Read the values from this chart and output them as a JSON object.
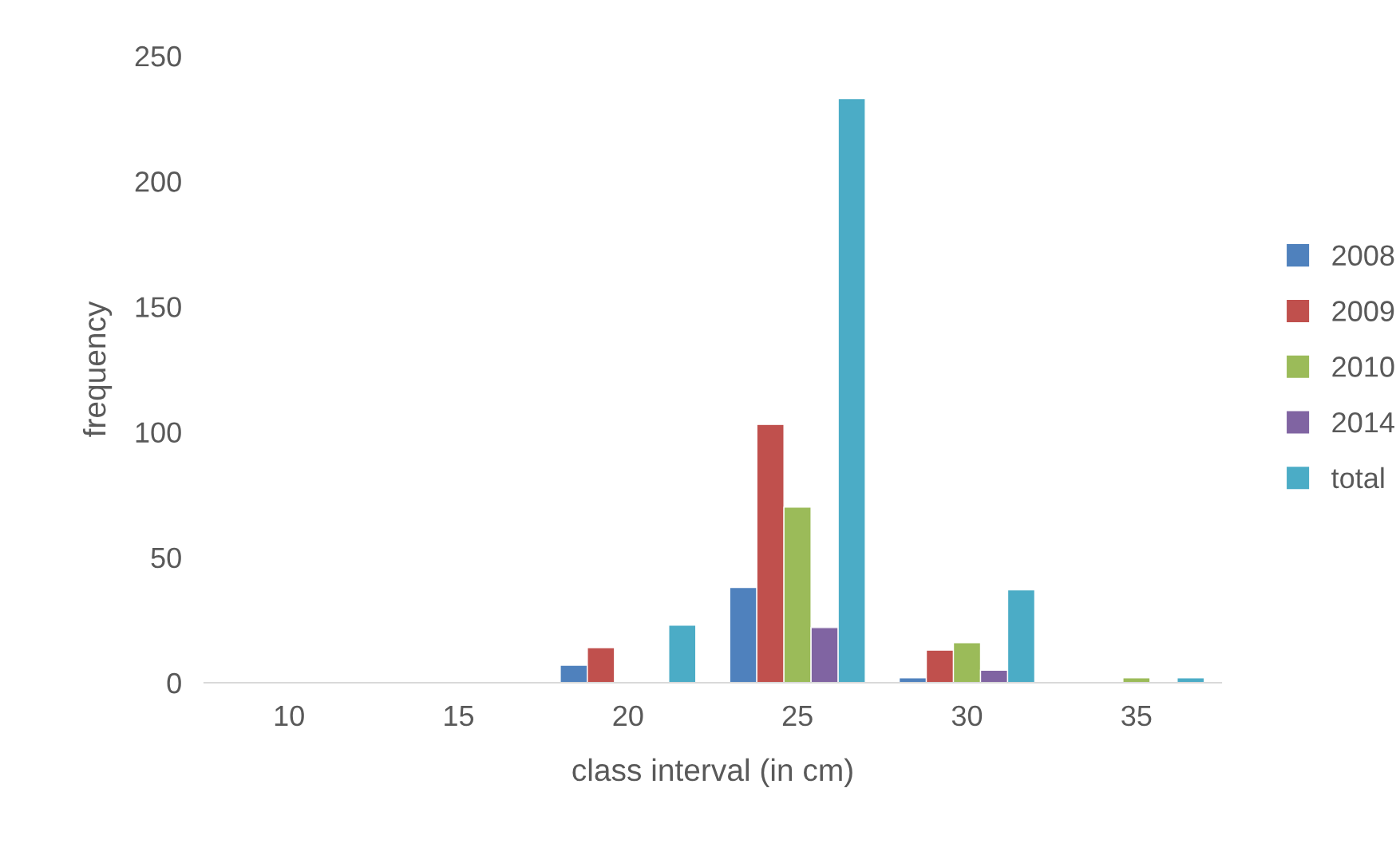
{
  "chart_data": {
    "type": "bar",
    "xlabel": "class interval (in cm)",
    "ylabel": "frequency",
    "categories": [
      "10",
      "15",
      "20",
      "25",
      "30",
      "35"
    ],
    "series": [
      {
        "name": "2008",
        "color": "#4f81bd",
        "values": [
          null,
          null,
          7,
          38,
          2,
          null
        ]
      },
      {
        "name": "2009",
        "color": "#c0504d",
        "values": [
          null,
          null,
          14,
          103,
          13,
          null
        ]
      },
      {
        "name": "2010",
        "color": "#9bbb59",
        "values": [
          null,
          null,
          null,
          70,
          16,
          2
        ]
      },
      {
        "name": "2014",
        "color": "#8064a2",
        "values": [
          null,
          null,
          null,
          22,
          5,
          null
        ]
      },
      {
        "name": "total",
        "color": "#4bacc6",
        "values": [
          null,
          null,
          23,
          233,
          37,
          2
        ]
      }
    ],
    "ylim": [
      0,
      250
    ],
    "yticks": [
      0,
      50,
      100,
      150,
      200,
      250
    ],
    "grid": false,
    "legend": "right"
  }
}
